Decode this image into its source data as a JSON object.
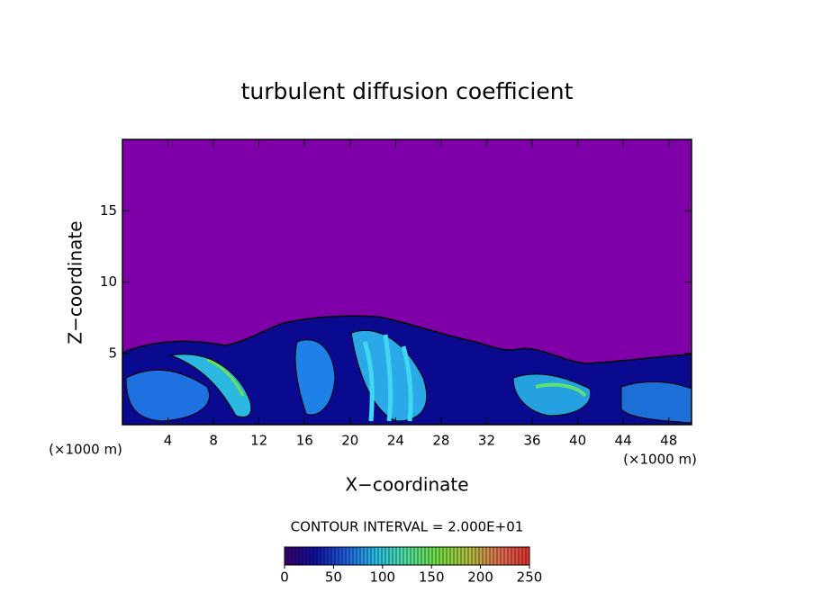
{
  "chart_data": {
    "type": "contour",
    "title": "turbulent diffusion coefficient",
    "x_label": "X−coordinate",
    "y_label": "Z−coordinate",
    "x_unit_left": "(×1000 m)",
    "x_unit_right": "(×1000 m)",
    "contour_interval_label": "CONTOUR INTERVAL = 2.000E+01",
    "xlim": [
      0,
      50
    ],
    "xticks": [
      4,
      8,
      12,
      16,
      20,
      24,
      28,
      32,
      36,
      40,
      44,
      48
    ],
    "ylim": [
      0,
      20
    ],
    "yticks": [
      5,
      10,
      15
    ],
    "background_color": "#7f00a8",
    "colorbar": {
      "lim": [
        0,
        250
      ],
      "ticks": [
        0,
        50,
        100,
        150,
        200,
        250
      ],
      "colors": [
        "#3a0070",
        "#1010a0",
        "#1f5fe0",
        "#29c0e8",
        "#50e0a0",
        "#70e040",
        "#b0c040",
        "#e07050",
        "#e03030"
      ]
    }
  }
}
